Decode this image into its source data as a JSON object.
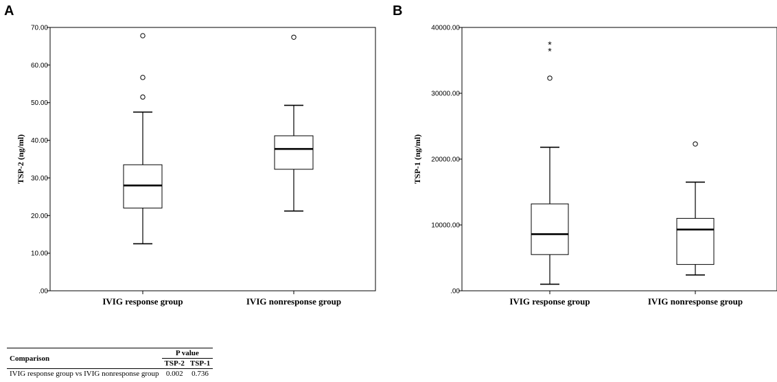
{
  "chart_data": [
    {
      "panel": "A",
      "type": "boxplot",
      "ylabel": "TSP-2 (ng/ml)",
      "ylim": [
        0,
        70
      ],
      "yticks": [
        ".00",
        "10.00",
        "20.00",
        "30.00",
        "40.00",
        "50.00",
        "60.00",
        "70.00"
      ],
      "ytick_values": [
        0,
        10,
        20,
        30,
        40,
        50,
        60,
        70
      ],
      "categories": [
        "IVIG response group",
        "IVIG nonresponse group"
      ],
      "boxes": [
        {
          "min": 12.5,
          "q1": 22.0,
          "median": 28.0,
          "q3": 33.5,
          "max": 47.5,
          "outliers": [
            51.5,
            56.7,
            67.8
          ],
          "extremes": []
        },
        {
          "min": 21.2,
          "q1": 32.3,
          "median": 37.7,
          "q3": 41.2,
          "max": 49.3,
          "outliers": [
            67.4
          ],
          "extremes": []
        }
      ]
    },
    {
      "panel": "B",
      "type": "boxplot",
      "ylabel": "TSP-1 (ng/ml)",
      "ylim": [
        0,
        40000
      ],
      "yticks": [
        ".00",
        "10000.00",
        "20000.00",
        "30000.00",
        "40000.00"
      ],
      "ytick_values": [
        0,
        10000,
        20000,
        30000,
        40000
      ],
      "categories": [
        "IVIG response group",
        "IVIG nonresponse group"
      ],
      "boxes": [
        {
          "min": 1000,
          "q1": 5500,
          "median": 8600,
          "q3": 13200,
          "max": 21800,
          "outliers": [
            32300
          ],
          "extremes": [
            36500,
            37500
          ]
        },
        {
          "min": 2400,
          "q1": 4000,
          "median": 9300,
          "q3": 11000,
          "max": 16500,
          "outliers": [
            22300
          ],
          "extremes": []
        }
      ]
    }
  ],
  "table": {
    "comparison_header": "Comparison",
    "pvalue_header": "P value",
    "col1": "TSP-2",
    "col2": "TSP-1",
    "row_label": "IVIG response group vs IVIG nonresponse group",
    "row_val1": "0.002",
    "row_val2": "0.736"
  }
}
